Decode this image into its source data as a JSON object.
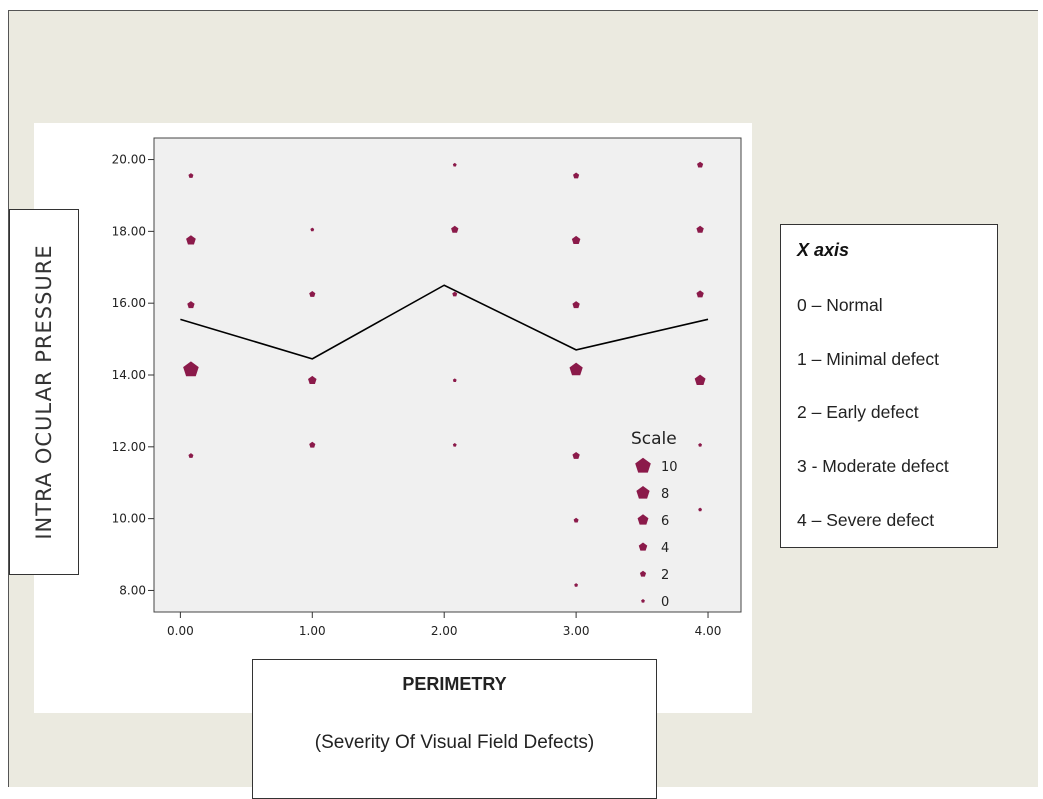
{
  "chart_data": {
    "type": "scatter",
    "title": "",
    "xlabel": "PERIMETRY",
    "xlabel_subtitle": "(Severity Of Visual Field Defects)",
    "ylabel": "INTRA OCULAR PRESSURE",
    "xlim": [
      -0.2,
      4.25
    ],
    "ylim": [
      7.4,
      20.6
    ],
    "grid": false,
    "x_ticks": [
      "0.00",
      "1.00",
      "2.00",
      "3.00",
      "4.00"
    ],
    "x_tick_values": [
      0,
      1,
      2,
      3,
      4
    ],
    "y_ticks": [
      "8.00",
      "10.00",
      "12.00",
      "14.00",
      "16.00",
      "18.00",
      "20.00"
    ],
    "y_tick_values": [
      8,
      10,
      12,
      14,
      16,
      18,
      20
    ],
    "marker_color": "#8b1a4a",
    "line_color": "#000000",
    "points": [
      {
        "x": 0.08,
        "y": 19.55,
        "size": 1
      },
      {
        "x": 0.08,
        "y": 17.75,
        "size": 5
      },
      {
        "x": 0.08,
        "y": 15.95,
        "size": 3
      },
      {
        "x": 0.08,
        "y": 14.15,
        "size": 10
      },
      {
        "x": 0.08,
        "y": 11.75,
        "size": 1
      },
      {
        "x": 1.0,
        "y": 18.05,
        "size": 0
      },
      {
        "x": 1.0,
        "y": 16.25,
        "size": 2
      },
      {
        "x": 1.0,
        "y": 13.85,
        "size": 4
      },
      {
        "x": 1.0,
        "y": 12.05,
        "size": 2
      },
      {
        "x": 2.08,
        "y": 19.85,
        "size": 0
      },
      {
        "x": 2.08,
        "y": 18.05,
        "size": 3
      },
      {
        "x": 2.08,
        "y": 16.25,
        "size": 1
      },
      {
        "x": 2.08,
        "y": 13.85,
        "size": 0
      },
      {
        "x": 2.08,
        "y": 12.05,
        "size": 0
      },
      {
        "x": 3.0,
        "y": 19.55,
        "size": 2
      },
      {
        "x": 3.0,
        "y": 17.75,
        "size": 4
      },
      {
        "x": 3.0,
        "y": 15.95,
        "size": 3
      },
      {
        "x": 3.0,
        "y": 14.15,
        "size": 8
      },
      {
        "x": 3.0,
        "y": 11.75,
        "size": 3
      },
      {
        "x": 3.0,
        "y": 9.95,
        "size": 1
      },
      {
        "x": 3.0,
        "y": 8.15,
        "size": 0
      },
      {
        "x": 3.94,
        "y": 19.85,
        "size": 2
      },
      {
        "x": 3.94,
        "y": 18.05,
        "size": 3
      },
      {
        "x": 3.94,
        "y": 16.25,
        "size": 3
      },
      {
        "x": 3.94,
        "y": 13.85,
        "size": 6
      },
      {
        "x": 3.94,
        "y": 12.05,
        "size": 0
      },
      {
        "x": 3.94,
        "y": 10.25,
        "size": 0
      }
    ],
    "mean_line": [
      {
        "x": 0.0,
        "y": 15.55
      },
      {
        "x": 1.0,
        "y": 14.45
      },
      {
        "x": 2.0,
        "y": 16.5
      },
      {
        "x": 3.0,
        "y": 14.7
      },
      {
        "x": 4.0,
        "y": 15.55
      }
    ],
    "size_legend": {
      "title": "Scale",
      "entries": [
        {
          "label": "10",
          "size": 10
        },
        {
          "label": "8",
          "size": 8
        },
        {
          "label": "6",
          "size": 6
        },
        {
          "label": "4",
          "size": 4
        },
        {
          "label": "2",
          "size": 2
        },
        {
          "label": "0",
          "size": 0
        }
      ]
    }
  },
  "legend": {
    "title": "X axis",
    "items": [
      "0 – Normal",
      "1 – Minimal defect",
      "2 – Early defect",
      "3 - Moderate defect",
      "4 – Severe defect"
    ]
  }
}
